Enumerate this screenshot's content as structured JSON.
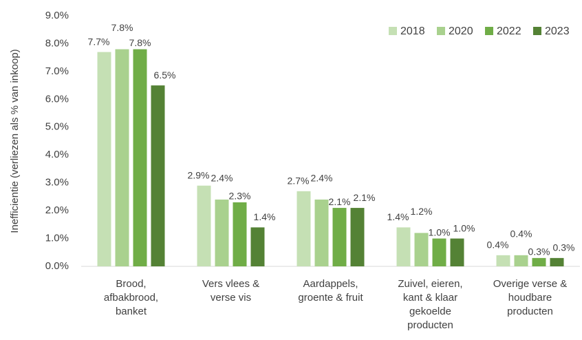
{
  "chart_data": {
    "type": "bar",
    "y_label": "Inefficientie (verliezen als % van inkoop)",
    "categories": [
      "Brood,\nafbakbrood,\nbanket",
      "Vers vlees &\nverse vis",
      "Aardappels,\ngroente & fruit",
      "Zuivel, eieren,\nkant & klaar\ngekoelde\nproducten",
      "Overige verse &\nhoudbare\nproducten"
    ],
    "series": [
      {
        "name": "2018",
        "color": "#c5e0b4",
        "values": [
          7.7,
          2.9,
          2.7,
          1.4,
          0.4
        ],
        "value_labels": [
          "7.7%",
          "2.9%",
          "2.7%",
          "1.4%",
          "0.4%"
        ]
      },
      {
        "name": "2020",
        "color": "#a9d18e",
        "values": [
          7.8,
          2.4,
          2.4,
          1.2,
          0.4
        ],
        "value_labels": [
          "7.8%",
          "2.4%",
          "2.4%",
          "1.2%",
          "0.4%"
        ]
      },
      {
        "name": "2022",
        "color": "#70ad47",
        "values": [
          7.8,
          2.3,
          2.1,
          1.0,
          0.3
        ],
        "value_labels": [
          "7.8%",
          "2.3%",
          "2.1%",
          "1.0%",
          "0.3%"
        ]
      },
      {
        "name": "2023",
        "color": "#548235",
        "values": [
          6.5,
          1.4,
          2.1,
          1.0,
          0.3
        ],
        "value_labels": [
          "6.5%",
          "1.4%",
          "2.1%",
          "1.0%",
          "0.3%"
        ]
      }
    ],
    "ylim": [
      0,
      9
    ],
    "yticks": [
      {
        "value": 0,
        "label": "0.0%"
      },
      {
        "value": 1,
        "label": "1.0%"
      },
      {
        "value": 2,
        "label": "2.0%"
      },
      {
        "value": 3,
        "label": "3.0%"
      },
      {
        "value": 4,
        "label": "4.0%"
      },
      {
        "value": 5,
        "label": "5.0%"
      },
      {
        "value": 6,
        "label": "6.0%"
      },
      {
        "value": 7,
        "label": "7.0%"
      },
      {
        "value": 8,
        "label": "8.0%"
      },
      {
        "value": 9,
        "label": "9.0%"
      }
    ],
    "legend": "top-right"
  }
}
